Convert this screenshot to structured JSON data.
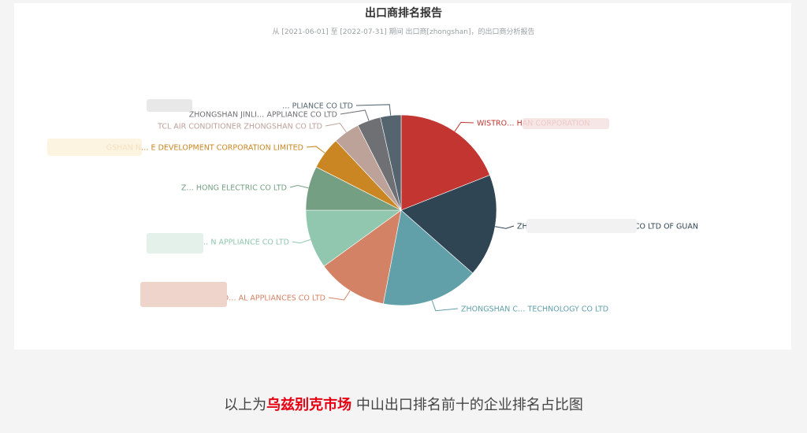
{
  "chart_data": {
    "type": "pie",
    "title": "出口商排名报告",
    "subtitle": "从 [2021-06-01] 至 [2022-07-31] 期间 出口商[zhongshan]，的出口商分析报告",
    "slices": [
      {
        "label": "WISTRO… HAN CORPORATION",
        "value": 19.0,
        "color": "#c23531"
      },
      {
        "label": "ZHONG… DUCTS IMP AND EXP CO LTD OF GUAN",
        "value": 17.5,
        "color": "#2f4554"
      },
      {
        "label": "ZHONGSHAN C… TECHNOLOGY CO LTD",
        "value": 16.5,
        "color": "#61a0a8"
      },
      {
        "label": "ZHONGSHAN DO… AL APPLIANCES CO LTD",
        "value": 12.0,
        "color": "#d48265"
      },
      {
        "label": "ZHONGSHAN… N APPLIANCE CO LTD",
        "value": 10.0,
        "color": "#91c7ae"
      },
      {
        "label": "Z… HONG ELECTRIC CO LTD",
        "value": 7.5,
        "color": "#749f83"
      },
      {
        "label": "GSHAN N… E DEVELOPMENT CORPORATION LIMITED",
        "value": 5.5,
        "color": "#ca8622"
      },
      {
        "label": "TCL AIR CONDITIONER ZHONGSHAN CO LTD",
        "value": 4.5,
        "color": "#bda29a"
      },
      {
        "label": "ZHONGSHAN JINLI… APPLIANCE CO LTD",
        "value": 4.0,
        "color": "#6e7074"
      },
      {
        "label": "… PLIANCE CO LTD",
        "value": 3.5,
        "color": "#546570"
      }
    ]
  },
  "caption": {
    "prefix": "以上为",
    "highlight": "乌兹别克市场",
    "suffix": " 中山出口排名前十的企业排名占比图"
  }
}
